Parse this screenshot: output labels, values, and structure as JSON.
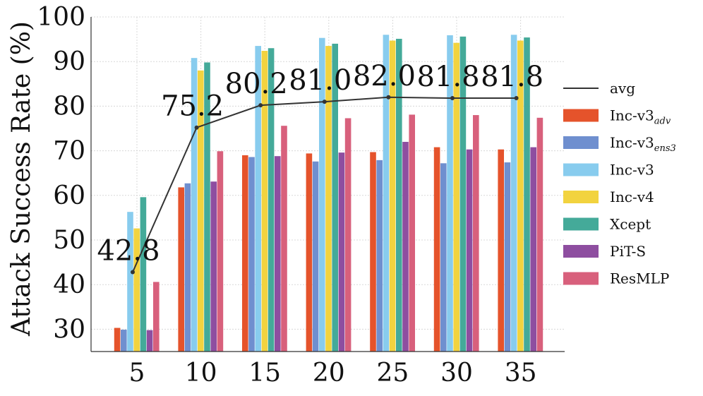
{
  "chart_data": {
    "type": "bar",
    "ylabel": "Attack Success Rate (%)",
    "xlabel": "",
    "ylim": [
      25,
      100
    ],
    "yticks": [
      30,
      40,
      50,
      60,
      70,
      80,
      90,
      100
    ],
    "grid": true,
    "legend_position": "right",
    "categories": [
      "5",
      "10",
      "15",
      "20",
      "25",
      "30",
      "35"
    ],
    "series": [
      {
        "name": "Inc-v3",
        "subscript": "adv",
        "color": "#E5532B",
        "values": [
          30.3,
          61.8,
          69.0,
          69.4,
          69.7,
          70.8,
          70.3
        ]
      },
      {
        "name": "Inc-v3",
        "subscript": "ens3",
        "color": "#6F8FCF",
        "values": [
          29.9,
          62.7,
          68.6,
          67.6,
          67.9,
          67.2,
          67.4
        ]
      },
      {
        "name": "Inc-v3",
        "subscript": "",
        "color": "#88CCEE",
        "values": [
          56.3,
          90.8,
          93.5,
          95.3,
          96.0,
          95.9,
          96.0
        ]
      },
      {
        "name": "Inc-v4",
        "subscript": "",
        "color": "#F2D33F",
        "values": [
          52.6,
          88.0,
          92.4,
          93.5,
          94.7,
          94.2,
          94.7
        ]
      },
      {
        "name": "Xcept",
        "subscript": "",
        "color": "#44AA99",
        "values": [
          59.6,
          89.8,
          93.0,
          94.0,
          95.1,
          95.6,
          95.4
        ]
      },
      {
        "name": "PiT-S",
        "subscript": "",
        "color": "#8E4EA0",
        "values": [
          29.8,
          63.1,
          68.8,
          69.6,
          72.0,
          70.3,
          70.8
        ]
      },
      {
        "name": "ResMLP",
        "subscript": "",
        "color": "#D8607C",
        "values": [
          40.6,
          69.9,
          75.6,
          77.3,
          78.1,
          78.0,
          77.4
        ]
      }
    ],
    "avg": {
      "name": "avg",
      "color": "#333333",
      "values": [
        42.8,
        75.2,
        80.2,
        81.0,
        82.0,
        81.8,
        81.8
      ],
      "labels": [
        "42.8",
        "75.2",
        "80.2",
        "81.0",
        "82.0",
        "81.8",
        "81.8"
      ]
    }
  }
}
